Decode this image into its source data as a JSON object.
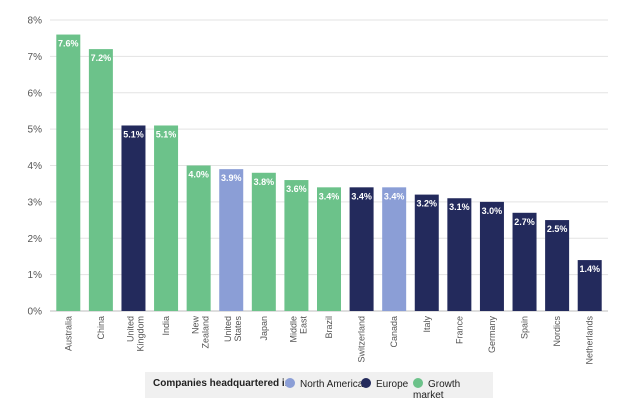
{
  "colors": {
    "north_america": "#8b9ed6",
    "europe": "#232a5c",
    "growth_market": "#6cc28a",
    "grid": "#e3e3e3",
    "axis_text": "#555555"
  },
  "legend": {
    "title": "Companies headquartered in:",
    "items": [
      {
        "label": "North America",
        "group": "north_america"
      },
      {
        "label": "Europe",
        "group": "europe"
      },
      {
        "label": "Growth market",
        "group": "growth_market"
      }
    ]
  },
  "chart_data": {
    "type": "bar",
    "title": "",
    "xlabel": "",
    "ylabel": "",
    "ylim": [
      0,
      8
    ],
    "y_ticks": [
      "0%",
      "1%",
      "2%",
      "3%",
      "4%",
      "5%",
      "6%",
      "7%",
      "8%"
    ],
    "grid": true,
    "legend_position": "bottom",
    "categories": [
      [
        "Australia"
      ],
      [
        "China"
      ],
      [
        "United",
        "Kingdom"
      ],
      [
        "India"
      ],
      [
        "New",
        "Zealand"
      ],
      [
        "United",
        "States"
      ],
      [
        "Japan"
      ],
      [
        "Middle",
        "East"
      ],
      [
        "Brazil"
      ],
      [
        "Switzerland"
      ],
      [
        "Canada"
      ],
      [
        "Italy"
      ],
      [
        "France"
      ],
      [
        "Germany"
      ],
      [
        "Spain"
      ],
      [
        "Nordics"
      ],
      [
        "Netherlands"
      ]
    ],
    "values": [
      7.6,
      7.2,
      5.1,
      5.1,
      4.0,
      3.9,
      3.8,
      3.6,
      3.4,
      3.4,
      3.4,
      3.2,
      3.1,
      3.0,
      2.7,
      2.5,
      1.4
    ],
    "value_labels": [
      "7.6%",
      "7.2%",
      "5.1%",
      "5.1%",
      "4.0%",
      "3.9%",
      "3.8%",
      "3.6%",
      "3.4%",
      "3.4%",
      "3.4%",
      "3.2%",
      "3.1%",
      "3.0%",
      "2.7%",
      "2.5%",
      "1.4%"
    ],
    "groups": [
      "growth_market",
      "growth_market",
      "europe",
      "growth_market",
      "growth_market",
      "north_america",
      "growth_market",
      "growth_market",
      "growth_market",
      "europe",
      "north_america",
      "europe",
      "europe",
      "europe",
      "europe",
      "europe",
      "europe"
    ]
  }
}
